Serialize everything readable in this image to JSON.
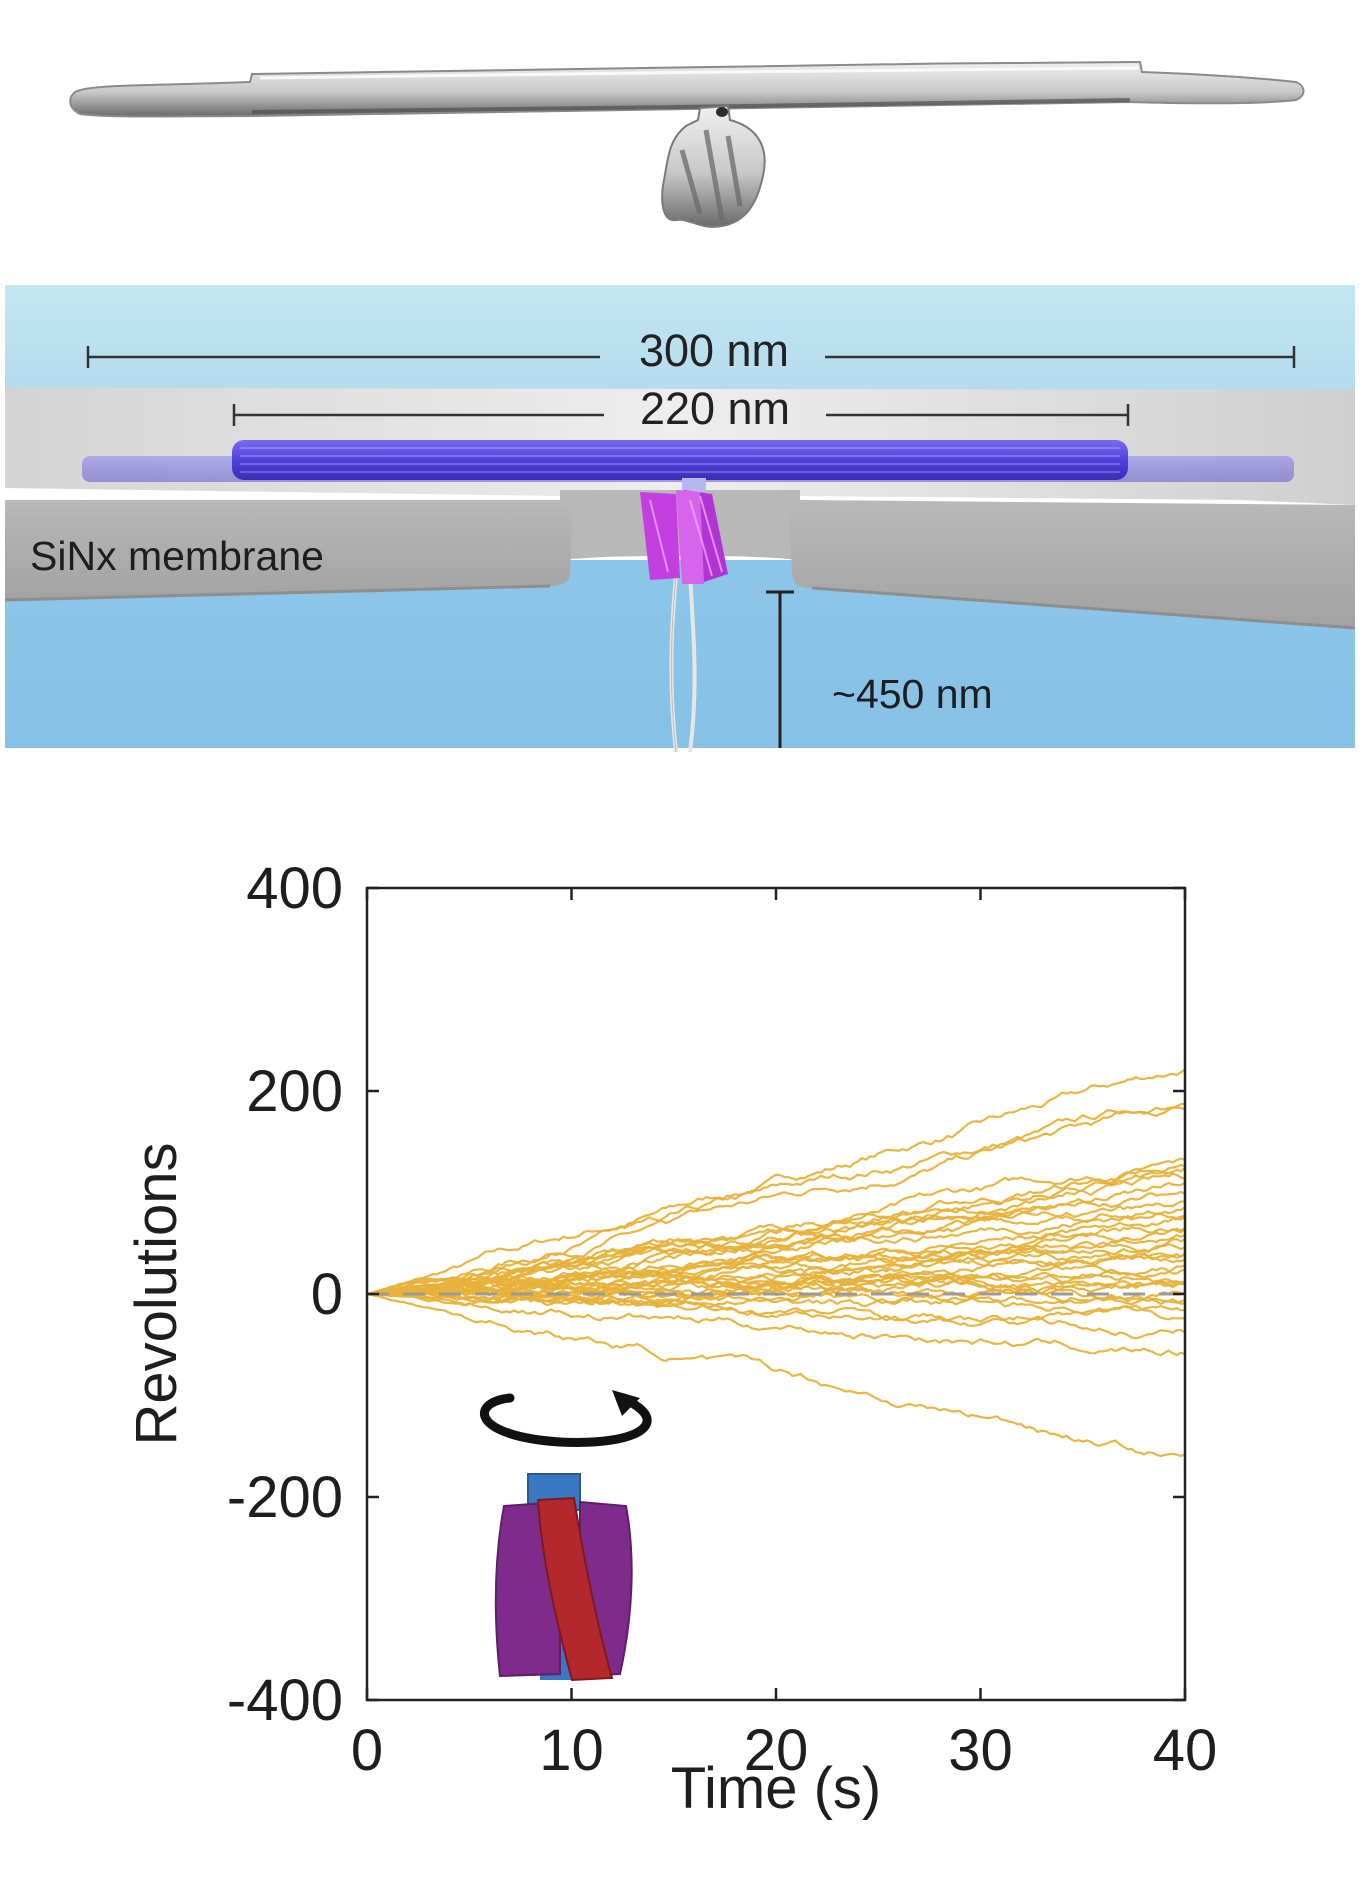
{
  "figure": {
    "schematic": {
      "dimension_outer": "300 nm",
      "dimension_inner": "220 nm",
      "membrane_label": "SiNx membrane",
      "depth_label": "~450 nm"
    }
  },
  "colors": {
    "trace": "#E8B23A",
    "axis": "#222222",
    "zero_line": "#9a9a9a",
    "water_top": "#bfe2f0",
    "water_bottom": "#86c1e6",
    "membrane": "#a9a9a9",
    "bundle": "#5a46e0",
    "motor": "#c640e0",
    "icon_purple": "#7e2b8c",
    "icon_red": "#b3282d",
    "icon_blue": "#3a78c2"
  },
  "chart_data": {
    "type": "line",
    "xlabel": "Time (s)",
    "ylabel": "Revolutions",
    "xlim": [
      0,
      40
    ],
    "ylim": [
      -400,
      400
    ],
    "xticks": [
      0,
      10,
      20,
      30,
      40
    ],
    "yticks": [
      -400,
      -200,
      0,
      200,
      400
    ],
    "xtick_labels": [
      "0",
      "10",
      "20",
      "30",
      "40"
    ],
    "ytick_labels": [
      "-400",
      "-200",
      "0",
      "200",
      "400"
    ],
    "zero_reference": "dashed",
    "grid": false,
    "inset_icon": "rotating-motor-icon",
    "trace_end_values": [
      220,
      190,
      184,
      132,
      125,
      118,
      110,
      104,
      98,
      92,
      86,
      80,
      74,
      68,
      62,
      56,
      50,
      46,
      40,
      36,
      30,
      26,
      22,
      18,
      14,
      10,
      6,
      2,
      -2,
      -8,
      -14,
      -24,
      -38,
      -58,
      -160
    ]
  }
}
